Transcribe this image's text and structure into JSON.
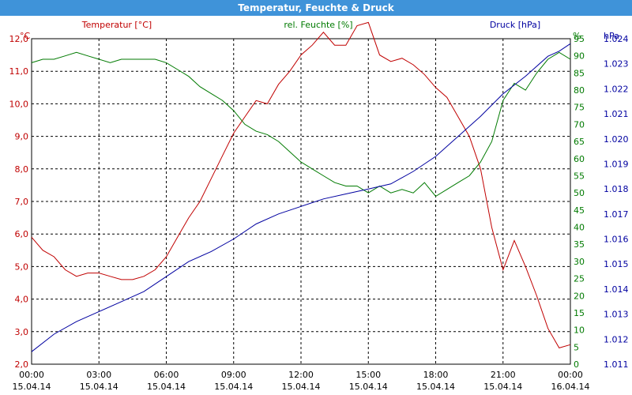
{
  "window": {
    "title": "Temperatur, Feuchte & Druck"
  },
  "colors": {
    "temperature": "#c00000",
    "humidity": "#007a00",
    "pressure": "#0000a0",
    "titlebar": "#3f93d9",
    "grid": "#000000"
  },
  "chart_data": {
    "type": "line",
    "title": "Temperatur, Feuchte & Druck",
    "grid": true,
    "x_ticks": [
      {
        "time": "00:00",
        "date": "15.04.14"
      },
      {
        "time": "03:00",
        "date": "15.04.14"
      },
      {
        "time": "06:00",
        "date": "15.04.14"
      },
      {
        "time": "09:00",
        "date": "15.04.14"
      },
      {
        "time": "12:00",
        "date": "15.04.14"
      },
      {
        "time": "15:00",
        "date": "15.04.14"
      },
      {
        "time": "18:00",
        "date": "15.04.14"
      },
      {
        "time": "21:00",
        "date": "15.04.14"
      },
      {
        "time": "00:00",
        "date": "16.04.14"
      }
    ],
    "axes": {
      "temperature": {
        "label": "Temperatur [°C]",
        "unit": "°C",
        "ylim": [
          2.0,
          12.0
        ],
        "ticks": [
          "12,0",
          "11,0",
          "10,0",
          "9,0",
          "8,0",
          "7,0",
          "6,0",
          "5,0",
          "4,0",
          "3,0",
          "2,0"
        ]
      },
      "humidity": {
        "label": "rel. Feuchte [%]",
        "unit": "%",
        "ylim": [
          0,
          95
        ],
        "ticks": [
          "95",
          "90",
          "85",
          "80",
          "75",
          "70",
          "65",
          "60",
          "55",
          "50",
          "45",
          "40",
          "35",
          "30",
          "25",
          "20",
          "15",
          "10",
          "5",
          "0"
        ]
      },
      "pressure": {
        "label": "Druck [hPa]",
        "unit": "hPa",
        "ylim": [
          1.011,
          1.024
        ],
        "ticks": [
          "1.024",
          "1.023",
          "1.022",
          "1.021",
          "1.020",
          "1.019",
          "1.018",
          "1.017",
          "1.016",
          "1.015",
          "1.014",
          "1.013",
          "1.012",
          "1.011"
        ]
      }
    },
    "series": [
      {
        "name": "Temperatur [°C]",
        "axis": "temperature",
        "x_hours": [
          0,
          0.5,
          1,
          1.5,
          2,
          2.5,
          3,
          3.5,
          4,
          4.5,
          5,
          5.5,
          6,
          6.5,
          7,
          7.5,
          8,
          8.5,
          9,
          9.5,
          10,
          10.5,
          11,
          11.5,
          12,
          12.5,
          13,
          13.5,
          14,
          14.5,
          15,
          15.5,
          16,
          16.5,
          17,
          17.5,
          18,
          18.5,
          19,
          19.5,
          20,
          20.5,
          21,
          21.5,
          22,
          22.5,
          23,
          23.5,
          24
        ],
        "values": [
          5.9,
          5.5,
          5.3,
          4.9,
          4.7,
          4.8,
          4.8,
          4.7,
          4.6,
          4.6,
          4.7,
          4.9,
          5.3,
          5.9,
          6.5,
          7.0,
          7.7,
          8.4,
          9.1,
          9.6,
          10.1,
          10.0,
          10.6,
          11.0,
          11.5,
          11.8,
          12.2,
          11.8,
          11.8,
          12.4,
          12.5,
          11.5,
          11.3,
          11.4,
          11.2,
          10.9,
          10.5,
          10.2,
          9.6,
          9.0,
          8.0,
          6.2,
          4.9,
          5.8,
          5.0,
          4.1,
          3.1,
          2.5,
          2.6
        ]
      },
      {
        "name": "rel. Feuchte [%]",
        "axis": "humidity",
        "x_hours": [
          0,
          0.5,
          1,
          1.5,
          2,
          2.5,
          3,
          3.5,
          4,
          4.5,
          5,
          5.5,
          6,
          6.5,
          7,
          7.5,
          8,
          8.5,
          9,
          9.5,
          10,
          10.5,
          11,
          11.5,
          12,
          12.5,
          13,
          13.5,
          14,
          14.5,
          15,
          15.5,
          16,
          16.5,
          17,
          17.5,
          18,
          18.5,
          19,
          19.5,
          20,
          20.5,
          21,
          21.5,
          22,
          22.5,
          23,
          23.5,
          24
        ],
        "values": [
          88,
          89,
          89,
          90,
          91,
          90,
          89,
          88,
          89,
          89,
          89,
          89,
          88,
          86,
          84,
          81,
          79,
          77,
          74,
          70,
          68,
          67,
          65,
          62,
          59,
          57,
          55,
          53,
          52,
          52,
          50,
          52,
          50,
          51,
          50,
          53,
          49,
          51,
          53,
          55,
          59,
          65,
          77,
          82,
          80,
          85,
          89,
          91,
          89
        ]
      },
      {
        "name": "Druck [hPa]",
        "axis": "pressure",
        "x_hours": [
          0,
          1,
          2,
          3,
          4,
          5,
          6,
          7,
          8,
          9,
          10,
          11,
          12,
          13,
          14,
          15,
          16,
          17,
          18,
          19,
          20,
          21,
          22,
          23,
          23.5,
          24
        ],
        "values": [
          1.0115,
          1.0122,
          1.0127,
          1.0131,
          1.0135,
          1.0139,
          1.0145,
          1.0151,
          1.0155,
          1.016,
          1.0166,
          1.017,
          1.0173,
          1.0176,
          1.0178,
          1.018,
          1.0182,
          1.0187,
          1.0193,
          1.0201,
          1.0209,
          1.0218,
          1.0225,
          1.0233,
          1.0235,
          1.0238
        ]
      }
    ]
  }
}
